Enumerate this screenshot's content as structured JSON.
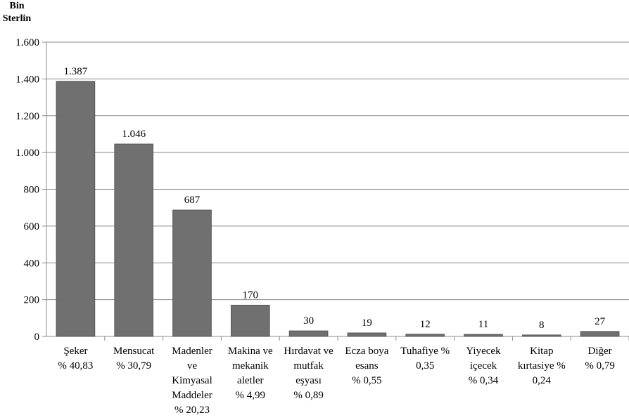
{
  "chart_data": {
    "type": "bar",
    "ylabel_lines": [
      "Bin",
      "Sterlin"
    ],
    "ylim": [
      0,
      1600
    ],
    "yticks": [
      0,
      200,
      400,
      600,
      800,
      1000,
      1200,
      1400,
      1600
    ],
    "ytick_labels": [
      "0",
      "200",
      "400",
      "600",
      "800",
      "1.000",
      "1.200",
      "1.400",
      "1.600"
    ],
    "grid": true,
    "categories": [
      [
        "Şeker",
        "% 40,83"
      ],
      [
        "Mensucat",
        "% 30,79"
      ],
      [
        "Madenler",
        "ve",
        "Kimyasal",
        "Maddeler",
        "% 20,23"
      ],
      [
        "Makina ve",
        "mekanik",
        "aletler",
        "% 4,99"
      ],
      [
        "Hırdavat ve",
        "mutfak",
        "eşyası",
        "% 0,89"
      ],
      [
        "Ecza boya",
        "esans",
        "% 0,55"
      ],
      [
        "Tuhafiye %",
        "0,35"
      ],
      [
        "Yiyecek",
        "içecek",
        "% 0,34"
      ],
      [
        "Kitap",
        "kırtasiye %",
        "0,24"
      ],
      [
        "Diğer",
        "% 0,79"
      ]
    ],
    "values": [
      1387,
      1046,
      687,
      170,
      30,
      19,
      12,
      11,
      8,
      27
    ],
    "value_labels": [
      "1.387",
      "1.046",
      "687",
      "170",
      "30",
      "19",
      "12",
      "11",
      "8",
      "27"
    ],
    "colors": {
      "bar": "#707070",
      "grid": "#8c8c8c"
    }
  }
}
